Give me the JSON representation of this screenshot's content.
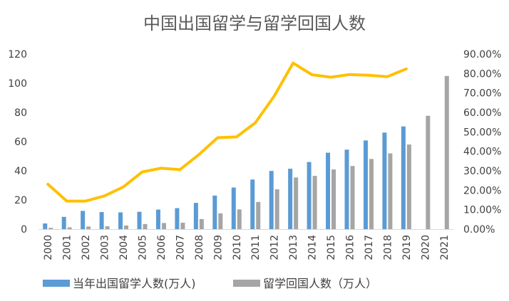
{
  "chart_data": {
    "type": "bar",
    "title": "中国出国留学与留学回国人数",
    "categories": [
      "2000",
      "2001",
      "2002",
      "2003",
      "2004",
      "2005",
      "2006",
      "2007",
      "2008",
      "2009",
      "2010",
      "2011",
      "2012",
      "2013",
      "2014",
      "2015",
      "2016",
      "2017",
      "2018",
      "2019",
      "2020",
      "2021"
    ],
    "series": [
      {
        "name": "当年出国留学人数(万人)",
        "type": "bar",
        "axis": "left",
        "color": "#5B9BD5",
        "values": [
          3.9,
          8.4,
          12.5,
          11.7,
          11.5,
          11.9,
          13.4,
          14.4,
          18.0,
          23.0,
          28.5,
          34.0,
          39.9,
          41.4,
          46.0,
          52.4,
          54.5,
          60.8,
          66.2,
          70.4,
          null,
          null
        ]
      },
      {
        "name": "留学回国人数（万人）",
        "type": "bar",
        "axis": "left",
        "color": "#A5A5A5",
        "values": [
          0.9,
          1.2,
          1.8,
          2.0,
          2.5,
          3.5,
          4.2,
          4.4,
          6.9,
          10.8,
          13.5,
          18.6,
          27.3,
          35.4,
          36.5,
          40.9,
          43.3,
          48.1,
          51.9,
          58.0,
          77.7,
          105.0
        ]
      },
      {
        "type": "line",
        "axis": "right",
        "color": "#FFC000",
        "values": [
          23.1,
          14.4,
          14.4,
          17.1,
          21.7,
          29.4,
          31.3,
          30.6,
          38.3,
          47.0,
          47.4,
          54.7,
          68.4,
          85.4,
          79.4,
          78.1,
          79.5,
          79.1,
          78.4,
          82.4,
          null,
          null
        ]
      }
    ],
    "y_left": {
      "min": 0,
      "max": 120,
      "ticks": [
        "0",
        "20",
        "40",
        "60",
        "80",
        "100",
        "120"
      ]
    },
    "y_right": {
      "min": 0,
      "max": 90,
      "ticks": [
        "0.00%",
        "10.00%",
        "20.00%",
        "30.00%",
        "40.00%",
        "50.00%",
        "60.00%",
        "70.00%",
        "80.00%",
        "90.00%"
      ]
    },
    "legend_position": "bottom",
    "grid": false
  }
}
